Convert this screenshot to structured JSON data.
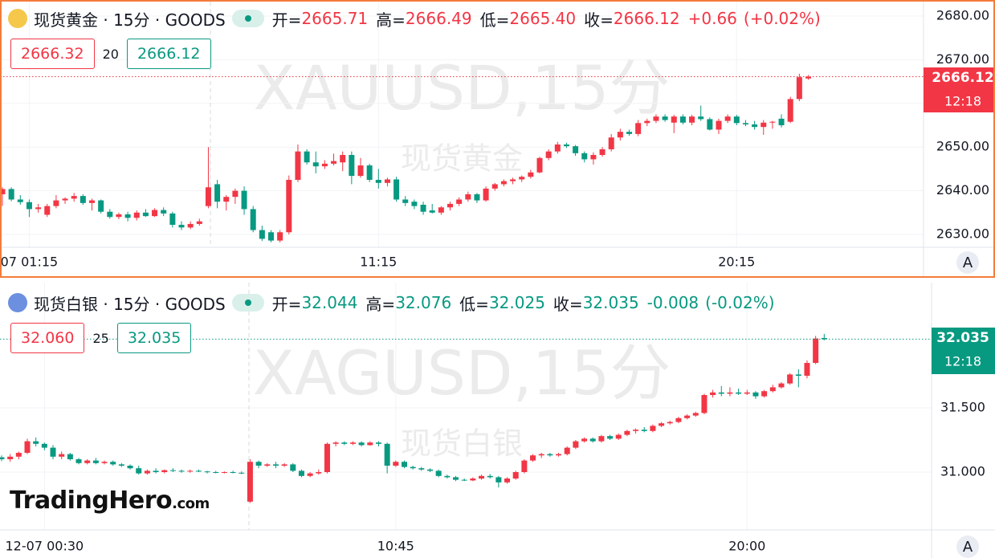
{
  "chart_data": [
    {
      "type": "candlestick",
      "title": "现货黄金 · 15分 · GOODS",
      "watermark": "XAUUSD,15分",
      "watermark_sub": "现货黄金",
      "header_color": "#f23645",
      "up_color": "#f23645",
      "down_color": "#089981",
      "header": {
        "items": [
          {
            "label": "开=",
            "value": "2665.71"
          },
          {
            "label": "高=",
            "value": "2666.49"
          },
          {
            "label": "低=",
            "value": "2665.40"
          },
          {
            "label": "收=",
            "value": "2666.12"
          }
        ],
        "change": "+0.66",
        "change_pct": "(+0.02%)"
      },
      "bid": "2666.32",
      "spread": "20",
      "ask": "2666.12",
      "price_label": "2666.12",
      "countdown": "12:18",
      "auto_button": "A",
      "ylim": [
        2627.06,
        2683.31
      ],
      "yticks": [
        {
          "value": 2630,
          "label": "2630.00"
        },
        {
          "value": 2640,
          "label": "2640.00"
        },
        {
          "value": 2650,
          "label": "2650.00"
        },
        {
          "value": 2660,
          "label": "2660.00"
        },
        {
          "value": 2670,
          "label": "2670.00"
        },
        {
          "value": 2680,
          "label": "2680.00"
        }
      ],
      "xticks": [
        {
          "value": 3,
          "label": "07 01:15"
        },
        {
          "value": 42,
          "label": "11:15"
        },
        {
          "value": 82,
          "label": "20:15"
        }
      ],
      "grid": true,
      "ohlc": [
        [
          2639.2,
          2640.8,
          2636.5,
          2640.4
        ],
        [
          2640.4,
          2640.8,
          2637.6,
          2638.0
        ],
        [
          2638.0,
          2639.0,
          2636.8,
          2637.4
        ],
        [
          2637.4,
          2638.0,
          2634.0,
          2635.8
        ],
        [
          2635.8,
          2637.0,
          2635.0,
          2636.2
        ],
        [
          2634.5,
          2637.0,
          2634.0,
          2636.5
        ],
        [
          2636.5,
          2639.0,
          2636.0,
          2637.8
        ],
        [
          2637.8,
          2638.5,
          2637.0,
          2638.2
        ],
        [
          2638.2,
          2639.5,
          2637.5,
          2638.8
        ],
        [
          2638.8,
          2639.2,
          2636.8,
          2637.2
        ],
        [
          2637.2,
          2638.2,
          2635.5,
          2637.8
        ],
        [
          2637.8,
          2638.0,
          2634.8,
          2635.2
        ],
        [
          2635.2,
          2635.8,
          2633.6,
          2634.0
        ],
        [
          2634.0,
          2635.0,
          2633.5,
          2634.6
        ],
        [
          2634.6,
          2635.2,
          2633.0,
          2633.8
        ],
        [
          2633.8,
          2635.5,
          2633.2,
          2635.0
        ],
        [
          2635.0,
          2635.8,
          2634.0,
          2634.2
        ],
        [
          2634.2,
          2636.0,
          2634.0,
          2635.6
        ],
        [
          2635.6,
          2636.2,
          2634.2,
          2634.8
        ],
        [
          2634.8,
          2635.2,
          2631.6,
          2632.2
        ],
        [
          2632.2,
          2633.0,
          2631.0,
          2631.6
        ],
        [
          2631.6,
          2633.0,
          2631.2,
          2632.4
        ],
        [
          2632.4,
          2633.6,
          2632.0,
          2633.0
        ],
        [
          2636.5,
          2650.0,
          2636.0,
          2640.8
        ],
        [
          2641.5,
          2642.5,
          2636.0,
          2637.5
        ],
        [
          2637.5,
          2639.0,
          2635.5,
          2638.6
        ],
        [
          2638.6,
          2640.5,
          2637.0,
          2640.0
        ],
        [
          2640.0,
          2641.0,
          2634.5,
          2635.8
        ],
        [
          2635.8,
          2636.5,
          2630.5,
          2631.0
        ],
        [
          2631.0,
          2632.0,
          2628.5,
          2629.0
        ],
        [
          2630.5,
          2631.0,
          2628.2,
          2628.6
        ],
        [
          2628.6,
          2631.0,
          2628.2,
          2630.5
        ],
        [
          2630.5,
          2643.5,
          2630.0,
          2642.5
        ],
        [
          2642.5,
          2650.6,
          2642.0,
          2649.0
        ],
        [
          2649.0,
          2649.5,
          2646.0,
          2646.5
        ],
        [
          2646.5,
          2649.0,
          2644.0,
          2645.6
        ],
        [
          2645.6,
          2647.0,
          2645.0,
          2646.2
        ],
        [
          2646.2,
          2648.5,
          2645.8,
          2646.8
        ],
        [
          2646.5,
          2649.0,
          2644.5,
          2648.2
        ],
        [
          2648.2,
          2649.0,
          2641.5,
          2643.4
        ],
        [
          2643.4,
          2647.5,
          2643.0,
          2645.8
        ],
        [
          2645.8,
          2646.2,
          2642.0,
          2642.5
        ],
        [
          2642.5,
          2645.0,
          2640.5,
          2641.8
        ],
        [
          2641.8,
          2643.0,
          2641.0,
          2642.6
        ],
        [
          2642.6,
          2643.2,
          2637.5,
          2638.0
        ],
        [
          2638.0,
          2638.8,
          2636.5,
          2637.2
        ],
        [
          2637.5,
          2638.0,
          2635.8,
          2636.5
        ],
        [
          2636.8,
          2637.5,
          2634.5,
          2635.2
        ],
        [
          2635.5,
          2637.0,
          2634.8,
          2635.0
        ],
        [
          2635.0,
          2636.5,
          2634.5,
          2636.2
        ],
        [
          2636.2,
          2637.5,
          2635.5,
          2637.0
        ],
        [
          2637.0,
          2638.5,
          2636.5,
          2638.0
        ],
        [
          2638.0,
          2639.8,
          2637.5,
          2639.2
        ],
        [
          2639.2,
          2639.5,
          2637.2,
          2637.8
        ],
        [
          2637.8,
          2641.0,
          2637.5,
          2640.5
        ],
        [
          2640.5,
          2641.8,
          2640.0,
          2641.5
        ],
        [
          2641.5,
          2642.6,
          2641.0,
          2642.2
        ],
        [
          2642.2,
          2643.0,
          2641.5,
          2642.6
        ],
        [
          2642.6,
          2643.5,
          2642.0,
          2643.2
        ],
        [
          2643.2,
          2644.8,
          2642.8,
          2644.2
        ],
        [
          2644.2,
          2647.8,
          2644.0,
          2647.5
        ],
        [
          2647.5,
          2649.5,
          2647.0,
          2649.0
        ],
        [
          2649.0,
          2651.2,
          2648.5,
          2650.6
        ],
        [
          2650.6,
          2651.0,
          2649.8,
          2650.2
        ],
        [
          2650.2,
          2650.5,
          2648.0,
          2648.6
        ],
        [
          2648.6,
          2649.0,
          2646.5,
          2647.2
        ],
        [
          2647.2,
          2648.8,
          2646.0,
          2648.2
        ],
        [
          2648.2,
          2650.0,
          2647.8,
          2649.5
        ],
        [
          2649.5,
          2653.0,
          2649.0,
          2652.2
        ],
        [
          2652.2,
          2654.2,
          2651.5,
          2653.5
        ],
        [
          2653.5,
          2654.0,
          2652.6,
          2653.0
        ],
        [
          2653.0,
          2656.2,
          2652.5,
          2655.5
        ],
        [
          2655.5,
          2656.5,
          2654.8,
          2656.0
        ],
        [
          2656.0,
          2657.5,
          2655.5,
          2657.0
        ],
        [
          2657.0,
          2657.5,
          2655.8,
          2656.2
        ],
        [
          2655.6,
          2657.4,
          2653.2,
          2657.0
        ],
        [
          2657.0,
          2657.5,
          2655.2,
          2655.6
        ],
        [
          2655.6,
          2657.4,
          2655.0,
          2657.0
        ],
        [
          2657.0,
          2659.5,
          2656.0,
          2656.4
        ],
        [
          2656.4,
          2656.8,
          2653.8,
          2654.0
        ],
        [
          2654.0,
          2656.5,
          2653.0,
          2656.0
        ],
        [
          2656.0,
          2657.5,
          2655.5,
          2657.0
        ],
        [
          2657.0,
          2657.4,
          2655.0,
          2655.5
        ],
        [
          2655.5,
          2656.2,
          2654.8,
          2655.2
        ],
        [
          2655.2,
          2656.0,
          2654.0,
          2654.6
        ],
        [
          2654.6,
          2656.2,
          2652.8,
          2655.6
        ],
        [
          2655.6,
          2656.0,
          2654.2,
          2655.8
        ],
        [
          2656.5,
          2657.5,
          2654.5,
          2655.0
        ],
        [
          2655.8,
          2661.5,
          2655.5,
          2661.0
        ],
        [
          2661.0,
          2666.8,
          2660.5,
          2666.0
        ],
        [
          2665.71,
          2666.49,
          2665.4,
          2666.12
        ]
      ]
    },
    {
      "type": "candlestick",
      "title": "现货白银 · 15分 · GOODS",
      "watermark": "XAGUSD,15分",
      "watermark_sub": "现货白银",
      "header_color": "#089981",
      "up_color": "#f23645",
      "down_color": "#089981",
      "header": {
        "items": [
          {
            "label": "开=",
            "value": "32.044"
          },
          {
            "label": "高=",
            "value": "32.076"
          },
          {
            "label": "低=",
            "value": "32.025"
          },
          {
            "label": "收=",
            "value": "32.035"
          }
        ],
        "change": "-0.008",
        "change_pct": "(-0.02%)"
      },
      "bid": "32.060",
      "spread": "25",
      "ask": "32.035",
      "price_label": "32.035",
      "countdown": "12:18",
      "auto_button": "A",
      "ylim": [
        30.55,
        32.475
      ],
      "yticks": [
        {
          "value": 31,
          "label": "31.000"
        },
        {
          "value": 31.5,
          "label": "31.500"
        }
      ],
      "xticks": [
        {
          "value": 5,
          "label": "12-07 00:30"
        },
        {
          "value": 46,
          "label": "10:45"
        },
        {
          "value": 87,
          "label": "20:00"
        }
      ],
      "grid": true,
      "ohlc": [
        [
          31.115,
          31.13,
          31.085,
          31.1
        ],
        [
          31.1,
          31.14,
          31.08,
          31.12
        ],
        [
          31.12,
          31.16,
          31.1,
          31.15
        ],
        [
          31.15,
          31.26,
          31.14,
          31.24
        ],
        [
          31.24,
          31.27,
          31.2,
          31.22
        ],
        [
          31.22,
          31.23,
          31.17,
          31.19
        ],
        [
          31.19,
          31.21,
          31.1,
          31.12
        ],
        [
          31.12,
          31.16,
          31.1,
          31.14
        ],
        [
          31.14,
          31.15,
          31.09,
          31.1
        ],
        [
          31.1,
          31.11,
          31.06,
          31.07
        ],
        [
          31.07,
          31.1,
          31.06,
          31.09
        ],
        [
          31.09,
          31.11,
          31.06,
          31.07
        ],
        [
          31.07,
          31.09,
          31.06,
          31.08
        ],
        [
          31.08,
          31.09,
          31.05,
          31.06
        ],
        [
          31.06,
          31.07,
          31.04,
          31.05
        ],
        [
          31.05,
          31.06,
          31.02,
          31.03
        ],
        [
          31.03,
          31.05,
          30.98,
          30.99
        ],
        [
          30.99,
          31.02,
          30.98,
          31.01
        ],
        [
          31.01,
          31.03,
          30.99,
          31.0
        ],
        [
          31.0,
          31.02,
          30.99,
          31.015
        ],
        [
          31.015,
          31.03,
          31.0,
          31.01
        ],
        [
          31.01,
          31.02,
          30.995,
          31.005
        ],
        [
          31.005,
          31.02,
          30.995,
          31.01
        ],
        [
          31.01,
          31.02,
          31.0,
          31.005
        ],
        [
          31.005,
          31.01,
          30.99,
          31.0
        ],
        [
          31.0,
          31.01,
          30.99,
          30.995
        ],
        [
          30.995,
          31.005,
          30.99,
          31.0
        ],
        [
          31.0,
          31.01,
          30.99,
          30.995
        ],
        [
          30.995,
          31.005,
          30.985,
          30.99
        ],
        [
          30.77,
          31.1,
          30.76,
          31.08
        ],
        [
          31.08,
          31.09,
          31.03,
          31.05
        ],
        [
          31.05,
          31.07,
          31.04,
          31.06
        ],
        [
          31.06,
          31.08,
          31.03,
          31.05
        ],
        [
          31.05,
          31.07,
          31.04,
          31.06
        ],
        [
          31.06,
          31.07,
          31.0,
          31.01
        ],
        [
          31.01,
          31.02,
          30.96,
          30.97
        ],
        [
          30.97,
          31.0,
          30.96,
          30.99
        ],
        [
          30.99,
          31.02,
          30.98,
          31.0
        ],
        [
          31.0,
          31.23,
          30.99,
          31.22
        ],
        [
          31.22,
          31.24,
          31.2,
          31.23
        ],
        [
          31.23,
          31.24,
          31.21,
          31.22
        ],
        [
          31.22,
          31.24,
          31.21,
          31.23
        ],
        [
          31.23,
          31.24,
          31.2,
          31.21
        ],
        [
          31.21,
          31.24,
          31.205,
          31.23
        ],
        [
          31.23,
          31.24,
          31.2,
          31.22
        ],
        [
          31.22,
          31.23,
          30.99,
          31.05
        ],
        [
          31.05,
          31.09,
          31.04,
          31.08
        ],
        [
          31.08,
          31.09,
          31.03,
          31.04
        ],
        [
          31.04,
          31.05,
          31.02,
          31.03
        ],
        [
          31.03,
          31.04,
          31.01,
          31.02
        ],
        [
          31.02,
          31.03,
          31.0,
          31.01
        ],
        [
          31.01,
          31.02,
          30.96,
          30.97
        ],
        [
          30.97,
          30.98,
          30.95,
          30.96
        ],
        [
          30.96,
          30.97,
          30.93,
          30.94
        ],
        [
          30.94,
          30.95,
          30.93,
          30.935
        ],
        [
          30.935,
          30.96,
          30.93,
          30.95
        ],
        [
          30.95,
          30.98,
          30.94,
          30.97
        ],
        [
          30.97,
          30.985,
          30.95,
          30.96
        ],
        [
          30.96,
          30.97,
          30.88,
          30.92
        ],
        [
          30.92,
          30.96,
          30.91,
          30.95
        ],
        [
          30.95,
          31.01,
          30.94,
          31.0
        ],
        [
          31.0,
          31.1,
          30.99,
          31.09
        ],
        [
          31.09,
          31.14,
          31.08,
          31.13
        ],
        [
          31.13,
          31.15,
          31.11,
          31.14
        ],
        [
          31.14,
          31.15,
          31.12,
          31.13
        ],
        [
          31.13,
          31.15,
          31.12,
          31.14
        ],
        [
          31.14,
          31.2,
          31.13,
          31.19
        ],
        [
          31.19,
          31.25,
          31.18,
          31.24
        ],
        [
          31.24,
          31.27,
          31.23,
          31.26
        ],
        [
          31.26,
          31.27,
          31.23,
          31.24
        ],
        [
          31.24,
          31.29,
          31.23,
          31.28
        ],
        [
          31.28,
          31.29,
          31.25,
          31.26
        ],
        [
          31.26,
          31.3,
          31.25,
          31.29
        ],
        [
          31.29,
          31.33,
          31.28,
          31.32
        ],
        [
          31.32,
          31.34,
          31.3,
          31.33
        ],
        [
          31.33,
          31.35,
          31.31,
          31.32
        ],
        [
          31.32,
          31.37,
          31.31,
          31.36
        ],
        [
          31.36,
          31.39,
          31.35,
          31.38
        ],
        [
          31.38,
          31.4,
          31.37,
          31.39
        ],
        [
          31.39,
          31.43,
          31.38,
          31.42
        ],
        [
          31.42,
          31.45,
          31.41,
          31.44
        ],
        [
          31.44,
          31.47,
          31.43,
          31.46
        ],
        [
          31.46,
          31.61,
          31.45,
          31.6
        ],
        [
          31.6,
          31.64,
          31.58,
          31.62
        ],
        [
          31.62,
          31.67,
          31.59,
          31.61
        ],
        [
          31.61,
          31.66,
          31.59,
          31.62
        ],
        [
          31.62,
          31.65,
          31.6,
          31.61
        ],
        [
          31.61,
          31.64,
          31.6,
          31.62
        ],
        [
          31.62,
          31.63,
          31.57,
          31.59
        ],
        [
          31.59,
          31.64,
          31.58,
          31.63
        ],
        [
          31.63,
          31.68,
          31.62,
          31.66
        ],
        [
          31.66,
          31.7,
          31.65,
          31.69
        ],
        [
          31.69,
          31.77,
          31.68,
          31.76
        ],
        [
          31.76,
          31.8,
          31.66,
          31.75
        ],
        [
          31.75,
          31.87,
          31.73,
          31.85
        ],
        [
          31.85,
          32.06,
          31.84,
          32.04
        ],
        [
          32.044,
          32.076,
          32.025,
          32.035
        ]
      ]
    }
  ],
  "logo": {
    "name": "TradingHero",
    "suffix": ".com"
  }
}
